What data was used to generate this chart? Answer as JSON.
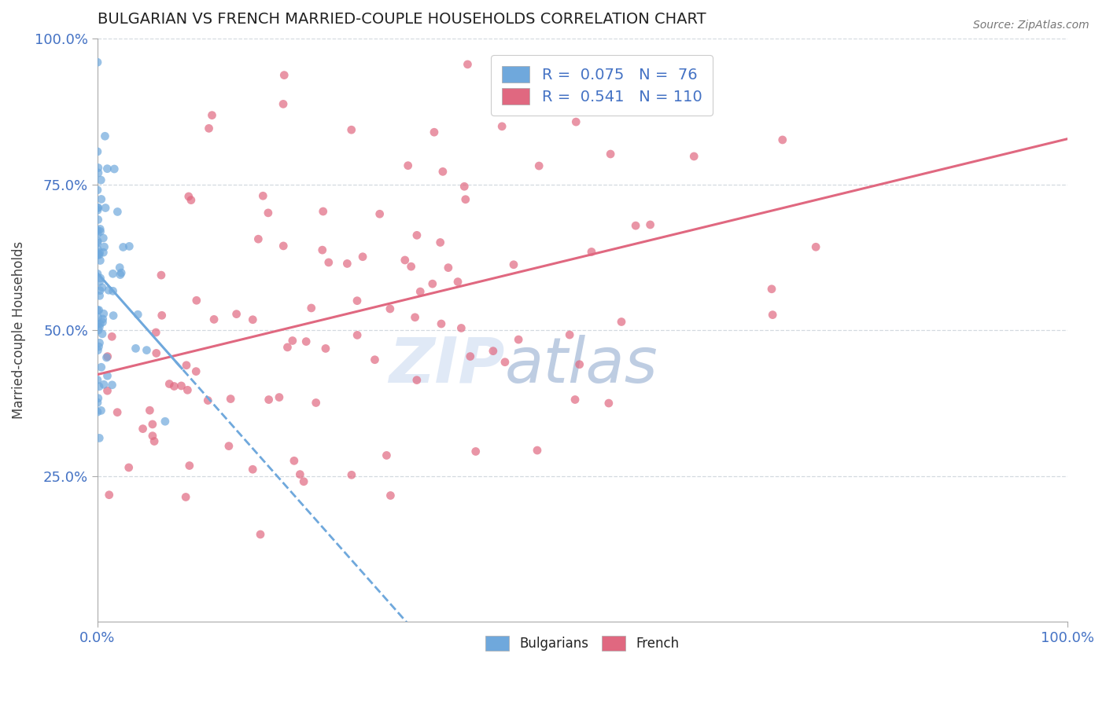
{
  "title": "BULGARIAN VS FRENCH MARRIED-COUPLE HOUSEHOLDS CORRELATION CHART",
  "source_text": "Source: ZipAtlas.com",
  "ylabel": "Married-couple Households",
  "xlim": [
    0,
    1.0
  ],
  "ylim": [
    0,
    1.0
  ],
  "bulgarian_color": "#6fa8dc",
  "french_color": "#e06880",
  "bulgarian_line_color": "#6fa8dc",
  "french_line_color": "#e06880",
  "bg_color": "#ffffff",
  "axis_color": "#4472c4",
  "title_color": "#222222",
  "watermark_color_zip": "#c8d8ee",
  "watermark_color_atlas": "#7090c0",
  "R_bulgarian": 0.075,
  "N_bulgarian": 76,
  "R_french": 0.541,
  "N_french": 110,
  "scatter_alpha": 0.7,
  "scatter_size": 60,
  "grid_color": "#c8d0d8",
  "grid_alpha": 0.8,
  "grid_linestyle": "--"
}
